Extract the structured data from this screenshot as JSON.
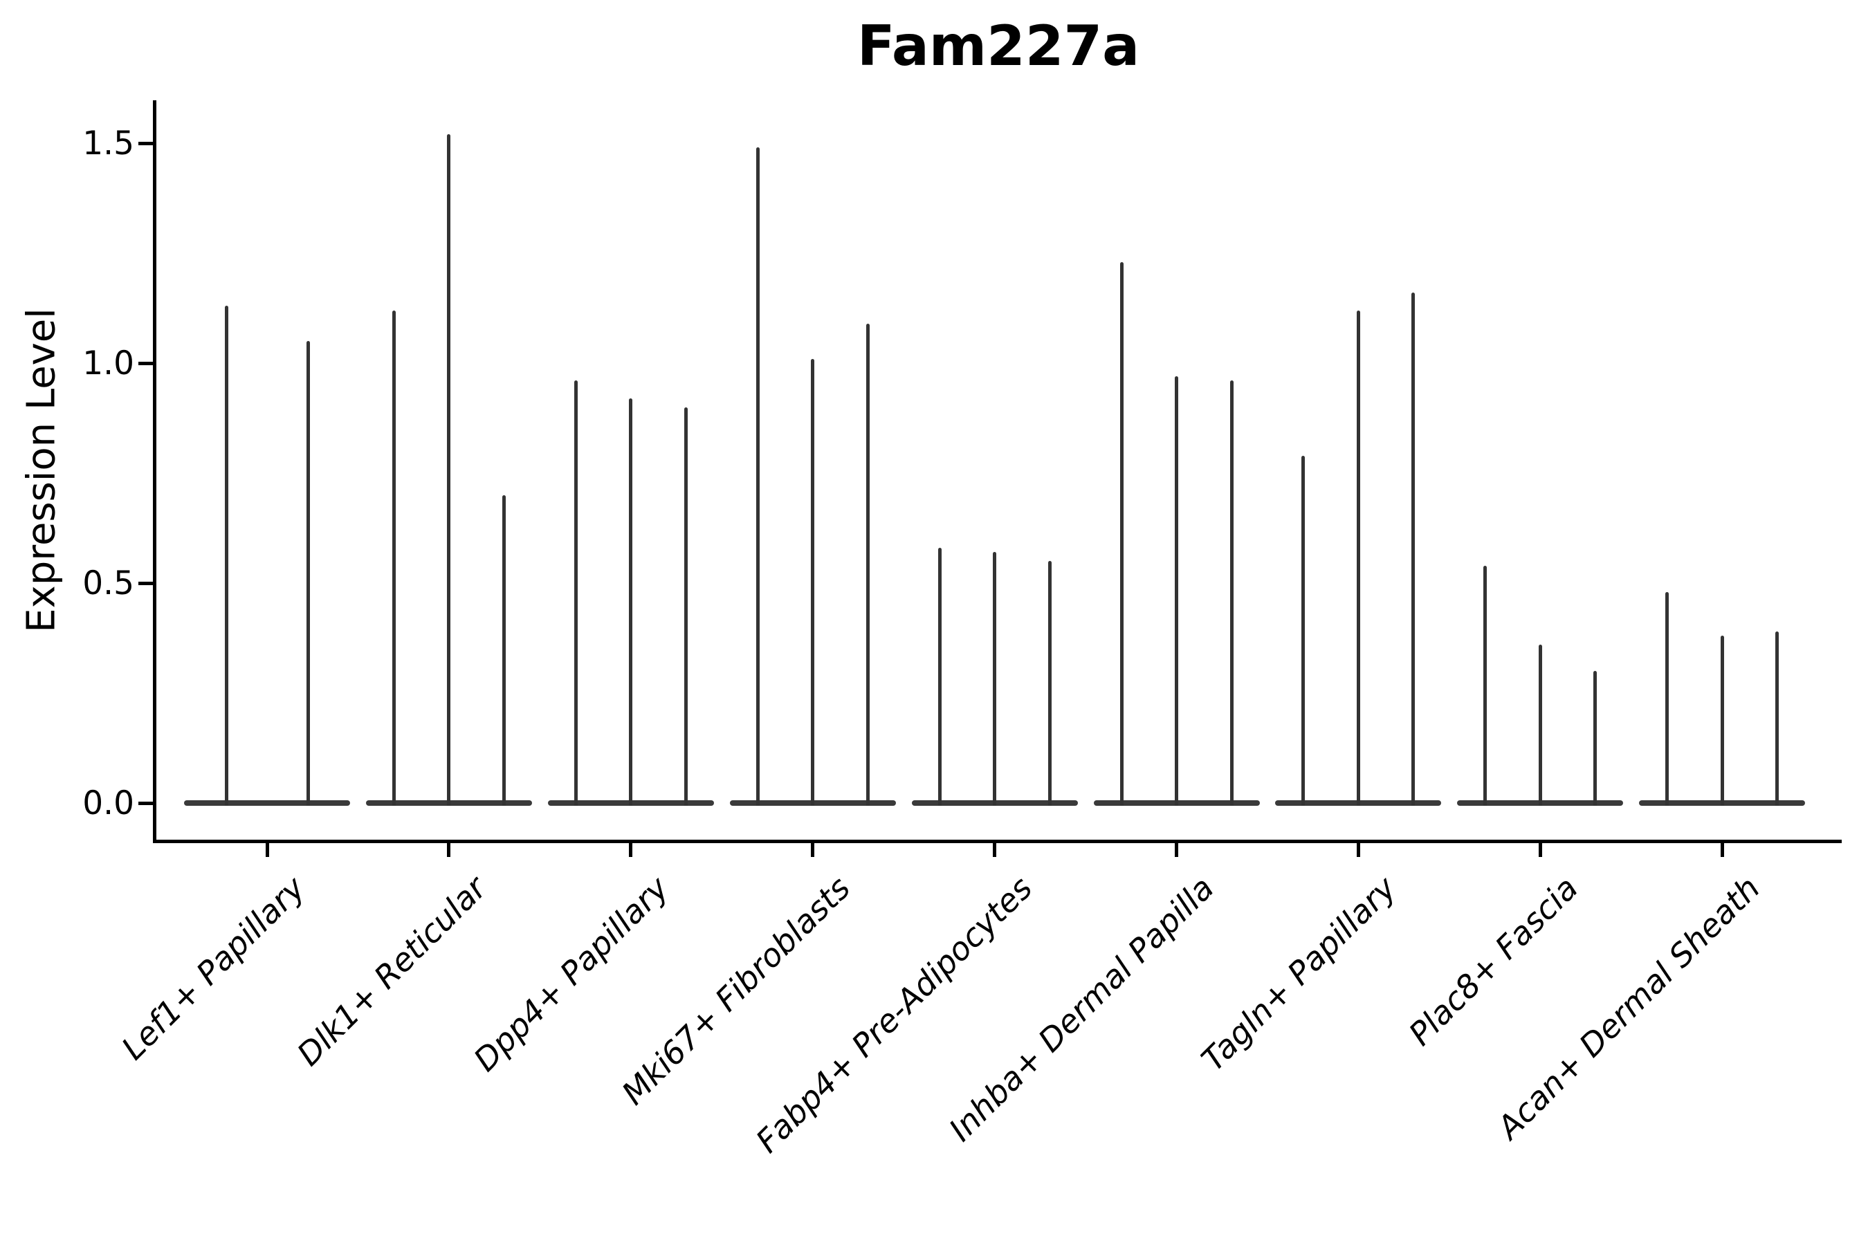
{
  "title": "Fam227a",
  "colors": {
    "violin": "#333333",
    "baseline": "#3a3a3a",
    "axis": "#000000",
    "text": "#000000",
    "background": "#ffffff"
  },
  "chart_data": {
    "type": "violin",
    "title": "Fam227a",
    "xlabel": "",
    "ylabel": "Expression Level",
    "yticks": [
      0.0,
      0.5,
      1.0,
      1.5
    ],
    "ylim": [
      -0.02,
      1.6
    ],
    "grid": false,
    "legend": "none",
    "style_note": "Each violin is collapsed at 0 (horizontal mass line) with a thin vertical spike reaching the maximum expression value",
    "categories": [
      "Lef1+ Papillary",
      "Dlk1+ Reticular",
      "Dpp4+ Papillary",
      "Mki67+ Fibroblasts",
      "Fabp4+ Pre-Adipocytes",
      "Inhba+ Dermal Papilla",
      "Tagln+ Papillary",
      "Plac8+ Fascia",
      "Acan+ Dermal Sheath"
    ],
    "groups": [
      {
        "label": "Lef1+ Papillary",
        "spike_maxima": [
          1.13,
          1.05
        ]
      },
      {
        "label": "Dlk1+ Reticular",
        "spike_maxima": [
          1.12,
          1.52,
          0.7
        ]
      },
      {
        "label": "Dpp4+ Papillary",
        "spike_maxima": [
          0.96,
          0.92,
          0.9
        ]
      },
      {
        "label": "Mki67+ Fibroblasts",
        "spike_maxima": [
          1.49,
          1.01,
          1.09
        ]
      },
      {
        "label": "Fabp4+ Pre-Adipocytes",
        "spike_maxima": [
          0.58,
          0.57,
          0.55
        ]
      },
      {
        "label": "Inhba+ Dermal Papilla",
        "spike_maxima": [
          1.23,
          0.97,
          0.96
        ]
      },
      {
        "label": "Tagln+ Papillary",
        "spike_maxima": [
          0.79,
          1.12,
          1.16
        ]
      },
      {
        "label": "Plac8+ Fascia",
        "spike_maxima": [
          0.54,
          0.36,
          0.3
        ]
      },
      {
        "label": "Acan+ Dermal Sheath",
        "spike_maxima": [
          0.48,
          0.38,
          0.39
        ]
      }
    ]
  }
}
